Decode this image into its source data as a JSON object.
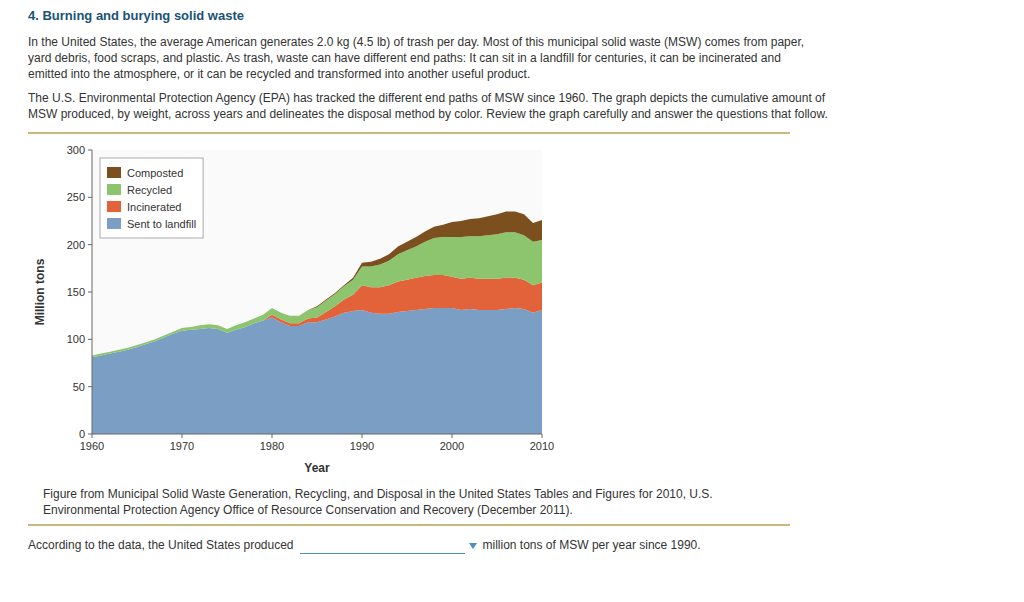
{
  "heading": "4. Burning and burying solid waste",
  "paragraphs": [
    [
      "In the United States, the average American generates 2.0 kg (4.5 lb) of trash per day. Most of this municipal solid waste (MSW) comes from paper,",
      "yard debris, food scraps, and plastic. As trash, waste can have different end paths: It can sit in a landfill for centuries, it can be incinerated and",
      "emitted into the atmosphere, or it can be recycled and transformed into another useful product."
    ],
    [
      "The U.S. Environmental Protection Agency (EPA) has tracked the different end paths of MSW since 1960. The graph depicts the cumulative amount of",
      "MSW produced, by weight, across years and delineates the disposal method by color. Review the graph carefully and answer the questions that follow."
    ]
  ],
  "caption": [
    "Figure from Municipal Solid Waste Generation, Recycling, and Disposal in the United States Tables and Figures for 2010, U.S.",
    "Environmental Protection Agency Office of Resource Conservation and Recovery (December 2011)."
  ],
  "questions": [
    [
      "According to the data, the United States produced",
      null,
      "million tons of MSW per year since 1990."
    ]
  ],
  "chart_data": {
    "type": "area",
    "stacked": true,
    "x": [
      1960,
      1961,
      1962,
      1963,
      1964,
      1965,
      1966,
      1967,
      1968,
      1969,
      1970,
      1971,
      1972,
      1973,
      1974,
      1975,
      1976,
      1977,
      1978,
      1979,
      1980,
      1981,
      1982,
      1983,
      1984,
      1985,
      1986,
      1987,
      1988,
      1989,
      1990,
      1991,
      1992,
      1993,
      1994,
      1995,
      1996,
      1997,
      1998,
      1999,
      2000,
      2001,
      2002,
      2003,
      2004,
      2005,
      2006,
      2007,
      2008,
      2009,
      2010
    ],
    "series": [
      {
        "name": "Sent to landfill",
        "color": "#7b9ec4",
        "values": [
          81,
          83,
          85,
          87,
          89,
          92,
          95,
          98,
          102,
          106,
          109,
          110,
          111,
          112,
          111,
          107,
          110,
          113,
          117,
          120,
          123,
          118,
          114,
          114,
          118,
          118,
          121,
          124,
          128,
          130,
          131,
          128,
          127,
          127,
          129,
          130,
          131,
          132,
          133,
          133,
          133,
          131,
          132,
          131,
          131,
          131,
          132,
          133,
          132,
          128,
          131
        ]
      },
      {
        "name": "Incinerated",
        "color": "#e2623a",
        "values": [
          0,
          0,
          0,
          0,
          0,
          0,
          0,
          0,
          0,
          0,
          0,
          0,
          0,
          0,
          0,
          0,
          0,
          0,
          0,
          0,
          3,
          3,
          3,
          3,
          4,
          5,
          8,
          11,
          14,
          17,
          26,
          27,
          28,
          30,
          32,
          33,
          34,
          35,
          35,
          35,
          33,
          33,
          33,
          33,
          33,
          33,
          33,
          32,
          31,
          29,
          29
        ]
      },
      {
        "name": "Recycled",
        "color": "#8dc46e",
        "values": [
          2,
          2,
          2,
          2,
          2,
          2,
          2,
          2,
          2,
          2,
          3,
          3,
          4,
          4,
          4,
          4,
          5,
          5,
          5,
          6,
          7,
          7,
          8,
          8,
          9,
          11,
          12,
          13,
          14,
          16,
          20,
          22,
          24,
          26,
          29,
          31,
          33,
          36,
          39,
          40,
          42,
          44,
          44,
          45,
          46,
          47,
          48,
          48,
          47,
          46,
          45
        ]
      },
      {
        "name": "Composted",
        "color": "#7b4f1e",
        "values": [
          0,
          0,
          0,
          0,
          0,
          0,
          0,
          0,
          0,
          0,
          0,
          0,
          0,
          0,
          0,
          0,
          0,
          0,
          0,
          0,
          0,
          0,
          0,
          0,
          0,
          1,
          1,
          1,
          1,
          2,
          4,
          5,
          6,
          7,
          8,
          9,
          10,
          11,
          12,
          13,
          16,
          17,
          18,
          19,
          20,
          21,
          22,
          22,
          22,
          20,
          21
        ]
      }
    ],
    "xlabel": "Year",
    "ylabel": "Million tons",
    "xlim": [
      1960,
      2010
    ],
    "ylim": [
      0,
      300
    ],
    "xticks": [
      1960,
      1970,
      1980,
      1990,
      2000,
      2010
    ],
    "yticks": [
      0,
      50,
      100,
      150,
      200,
      250,
      300
    ],
    "legend": "upper left",
    "grid": false
  }
}
